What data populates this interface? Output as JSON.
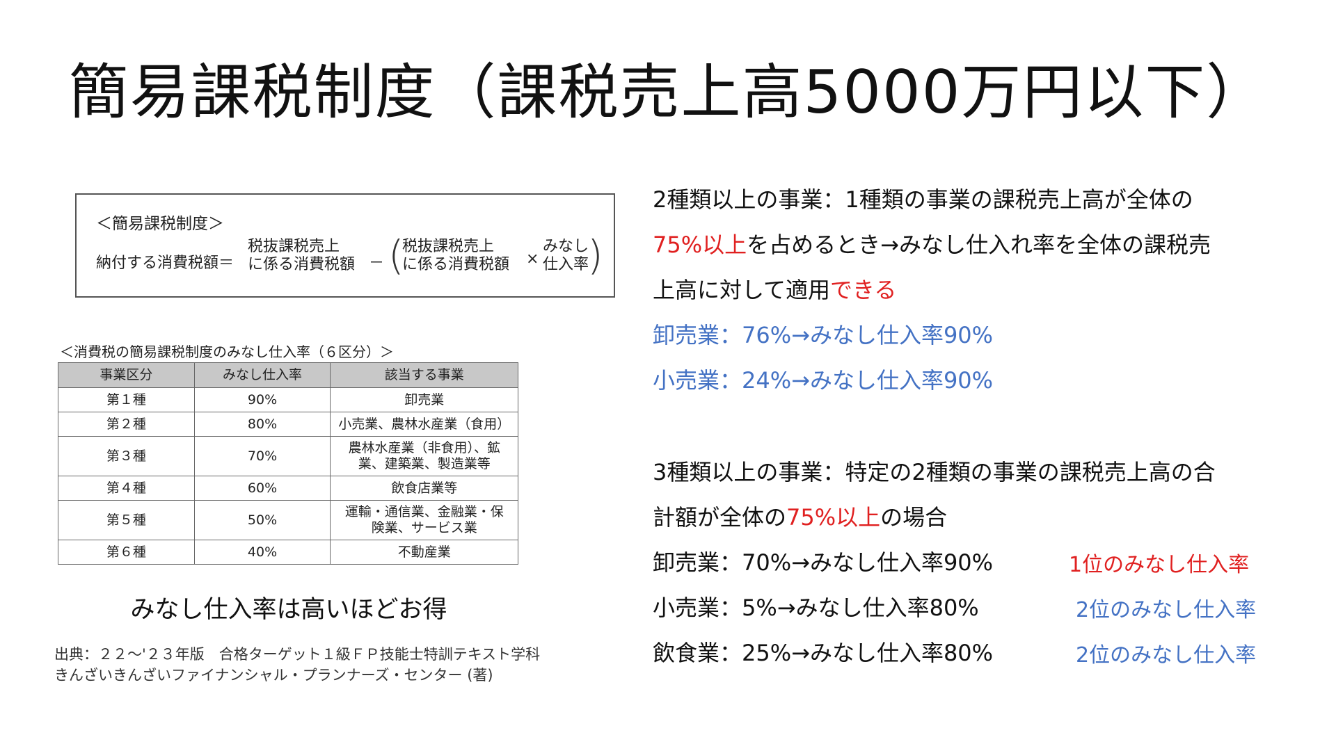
{
  "title": "簡易課税制度（課税売上高5000万円以下）",
  "formula": {
    "heading": "＜簡易課税制度＞",
    "lhs": "納付する消費税額＝",
    "term1_line1": "税抜課税売上",
    "term1_line2": "に係る消費税額",
    "minus": "－",
    "paren_open": "(",
    "term2_line1": "税抜課税売上",
    "term2_line2": "に係る消費税額",
    "times": "×",
    "term3_line1": "みなし",
    "term3_line2": "仕入率",
    "paren_close": ")"
  },
  "table": {
    "caption": "＜消費税の簡易課税制度のみなし仕入率（６区分）＞",
    "headers": [
      "事業区分",
      "みなし仕入率",
      "該当する事業"
    ],
    "rows": [
      {
        "category": "第１種",
        "rate": "90%",
        "business_1": "卸売業",
        "business_2": ""
      },
      {
        "category": "第２種",
        "rate": "80%",
        "business_1": "小売業、農林水産業（食用）",
        "business_2": ""
      },
      {
        "category": "第３種",
        "rate": "70%",
        "business_1": "農林水産業（非食用）、鉱",
        "business_2": "業、建築業、製造業等"
      },
      {
        "category": "第４種",
        "rate": "60%",
        "business_1": "飲食店業等",
        "business_2": ""
      },
      {
        "category": "第５種",
        "rate": "50%",
        "business_1": "運輸・通信業、金融業・保",
        "business_2": "険業、サービス業"
      },
      {
        "category": "第６種",
        "rate": "40%",
        "business_1": "不動産業",
        "business_2": ""
      }
    ]
  },
  "caption_under_table": "みなし仕入率は高いほどお得",
  "source": {
    "line1": "出典：２２～'２３年版　合格ターゲット１級ＦＰ技能士特訓テキスト学科",
    "line2": "きんざいきんざいファイナンシャル・プランナーズ・センター (著)"
  },
  "section1": {
    "line1": "2種類以上の事業：1種類の事業の課税売上高が全体の",
    "line2_red": "75%以上",
    "line2_rest": "を占めるとき→みなし仕入れ率を全体の課税売",
    "line3": "上高に対して適用",
    "line3_red": "できる",
    "example1": "卸売業：76%→みなし仕入率90%",
    "example2": "小売業：24%→みなし仕入率90%"
  },
  "section2": {
    "line1": "3種類以上の事業：特定の2種類の事業の課税売上高の合",
    "line2_pre": "計額が全体の",
    "line2_red": "75%以上",
    "line2_post": "の場合",
    "rows": [
      {
        "text": "卸売業：70%→みなし仕入率90%",
        "note": "1位のみなし仕入率",
        "note_color": "#e02020"
      },
      {
        "text": "小売業：5%→みなし仕入率80%",
        "note": "2位のみなし仕入率",
        "note_color": "#4472c4"
      },
      {
        "text": "飲食業：25%→みなし仕入率80%",
        "note": "2位のみなし仕入率",
        "note_color": "#4472c4"
      }
    ]
  },
  "colors": {
    "accent_red": "#e02020",
    "accent_blue": "#4472c4"
  }
}
